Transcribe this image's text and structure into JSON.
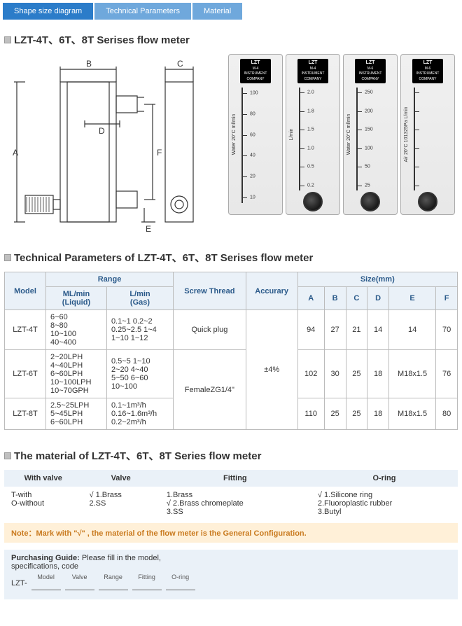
{
  "tabs": {
    "t1": "Shape size diagram",
    "t2": "Technical Parameters",
    "t3": "Material"
  },
  "tab_colors": {
    "primary": "#2b7cc9",
    "light": "#6fa8dc"
  },
  "section1_title": "LZT-4T、6T、8T Serises flow meter",
  "diagram": {
    "labels": {
      "A": "A",
      "B": "B",
      "C": "C",
      "D": "D",
      "E": "E",
      "F": "F"
    }
  },
  "meters": [
    {
      "brand": "LZT",
      "sub": "M-4\nINSTRUMENT\nCOMPANY",
      "vtext": "Water  20°C  ml/min",
      "ticks": [
        "100",
        "80",
        "60",
        "40",
        "20",
        "10"
      ],
      "knob": false
    },
    {
      "brand": "LZT",
      "sub": "M-4\nINSTRUMENT\nCOMPANY",
      "vtext": "L/min",
      "ticks": [
        "2.0",
        "1.8",
        "1.5",
        "1.0",
        "0.5",
        "0.2"
      ],
      "knob": true
    },
    {
      "brand": "LZT",
      "sub": "M-6\nINSTRUMENT\nCOMPANY",
      "vtext": "Water  20°C  ml/min",
      "ticks": [
        "250",
        "200",
        "150",
        "100",
        "50",
        "25"
      ],
      "knob": true
    },
    {
      "brand": "LZT",
      "sub": "M-6\nINSTRUMENT\nCOMPANY",
      "vtext": "Air 20°C 101325Pa L/min",
      "ticks": [
        "",
        "",
        "",
        "",
        "",
        ""
      ],
      "knob": true
    }
  ],
  "section2_title": "Technical Parameters of LZT-4T、6T、8T Serises flow meter",
  "params": {
    "head": {
      "model": "Model",
      "range": "Range",
      "range_ml": "ML/min\n(Liquid)",
      "range_l": "L/min\n(Gas)",
      "screw": "Screw Thread",
      "acc": "Accurary",
      "size": "Size(mm)",
      "A": "A",
      "B": "B",
      "C": "C",
      "D": "D",
      "E": "E",
      "F": "F"
    },
    "rows": [
      {
        "model": "LZT-4T",
        "ml": "6~60\n8~80\n10~100\n40~400",
        "l": "0.1~1          0.2~2\n0.25~2.5     1~4\n1~10            1~12",
        "screw": "Quick plug",
        "A": "94",
        "B": "27",
        "C": "21",
        "D": "14",
        "E": "14",
        "F": "70"
      },
      {
        "model": "LZT-6T",
        "ml": "2~20LPH\n4~40LPH\n6~60LPH\n10~100LPH\n10~70GPH",
        "l": "0.5~5          1~10\n2~20           4~40\n5~50           6~60\n10~100",
        "screw": "FemaleZG1/4\"",
        "A": "102",
        "B": "30",
        "C": "25",
        "D": "18",
        "E": "M18x1.5",
        "F": "76"
      },
      {
        "model": "LZT-8T",
        "ml": "2.5~25LPH\n5~45LPH\n6~60LPH",
        "l": "0.1~1m³/h\n0.16~1.6m³/h\n0.2~2m³/h",
        "screw": "",
        "A": "110",
        "B": "25",
        "C": "25",
        "D": "18",
        "E": "M18x1.5",
        "F": "80"
      }
    ],
    "acc": "±4%"
  },
  "section3_title": "The material of LZT-4T、6T、8T  Series flow meter",
  "material": {
    "head": {
      "c1": "With valve",
      "c2": "Valve",
      "c3": "Fitting",
      "c4": "O-ring"
    },
    "row": {
      "c1": "T-with\nO-without",
      "c2": "√ 1.Brass\n    2.SS",
      "c3": "   1.Brass\n√ 2.Brass chromeplate\n   3.SS",
      "c4": "√ 1.Silicone ring\n    2.Fluoroplastic rubber\n    3.Butyl"
    }
  },
  "note": "Note：Mark with \"√\" , the material of the flow meter is the General Configuration.",
  "purchasing": {
    "title": "Purchasing Guide:",
    "sub": "Please fill in the model,\nspecifications, code",
    "prefix": "LZT-",
    "slots": [
      "Model",
      "Valve",
      "Range",
      "Fitting",
      "O-ring"
    ]
  }
}
